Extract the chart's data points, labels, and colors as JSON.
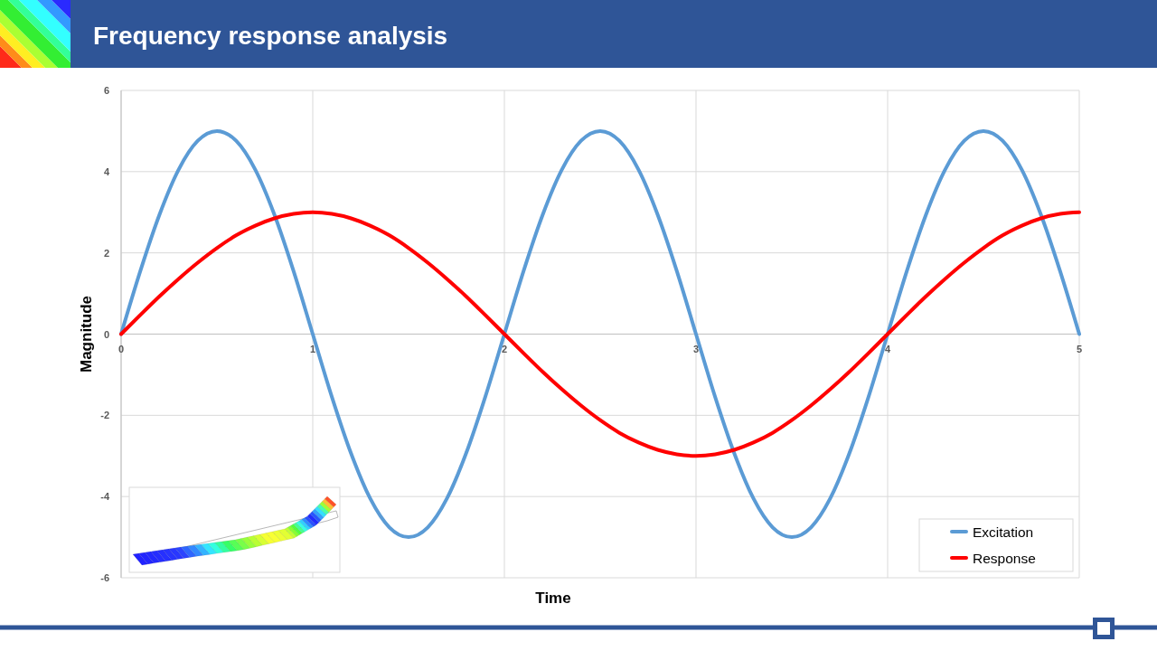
{
  "chart_data": {
    "type": "line",
    "title": "Frequency response analysis",
    "xlabel": "Time",
    "ylabel": "Magnitude",
    "x": [
      0,
      0.1,
      0.2,
      0.3,
      0.4,
      0.5,
      0.6,
      0.7,
      0.8,
      0.9,
      1,
      1.1,
      1.2,
      1.3,
      1.4,
      1.5,
      1.6,
      1.7,
      1.8,
      1.9,
      2,
      2.1,
      2.2,
      2.3,
      2.4,
      2.5,
      2.6,
      2.7,
      2.8,
      2.9,
      3,
      3.1,
      3.2,
      3.3,
      3.4,
      3.5,
      3.6,
      3.7,
      3.8,
      3.9,
      4,
      4.1,
      4.2,
      4.3,
      4.4,
      4.5,
      4.6,
      4.7,
      4.8,
      4.9,
      5
    ],
    "series": [
      {
        "name": "Excitation",
        "color": "#5b9bd5",
        "values": [
          0,
          1.55,
          2.94,
          4.05,
          4.76,
          5,
          4.76,
          4.05,
          2.94,
          1.55,
          0,
          -1.55,
          -2.94,
          -4.05,
          -4.76,
          -5,
          -4.76,
          -4.05,
          -2.94,
          -1.55,
          0,
          1.55,
          2.94,
          4.05,
          4.76,
          5,
          4.76,
          4.05,
          2.94,
          1.55,
          0,
          -1.55,
          -2.94,
          -4.05,
          -4.76,
          -5,
          -4.76,
          -4.05,
          -2.94,
          -1.55,
          0,
          1.55,
          2.94,
          4.05,
          4.76,
          5,
          4.76,
          4.05,
          2.94,
          1.55,
          0
        ]
      },
      {
        "name": "Response",
        "color": "#ff0000",
        "values": [
          0,
          0.47,
          0.93,
          1.36,
          1.76,
          2.12,
          2.43,
          2.67,
          2.85,
          2.96,
          3,
          2.96,
          2.85,
          2.67,
          2.43,
          2.12,
          1.76,
          1.36,
          0.93,
          0.47,
          0,
          -0.47,
          -0.93,
          -1.36,
          -1.76,
          -2.12,
          -2.43,
          -2.67,
          -2.85,
          -2.96,
          -3,
          -2.96,
          -2.85,
          -2.67,
          -2.43,
          -2.12,
          -1.76,
          -1.36,
          -0.93,
          -0.47,
          0,
          0.47,
          0.93,
          1.36,
          1.76,
          2.12,
          2.43,
          2.67,
          2.85,
          2.96,
          3
        ]
      }
    ],
    "xlim": [
      0,
      5
    ],
    "xticks": [
      0,
      1,
      2,
      3,
      4,
      5
    ],
    "ylim": [
      -6,
      6
    ],
    "yticks": [
      -6,
      -4,
      -2,
      0,
      2,
      4,
      6
    ],
    "grid": true,
    "legend": "bottom right"
  }
}
